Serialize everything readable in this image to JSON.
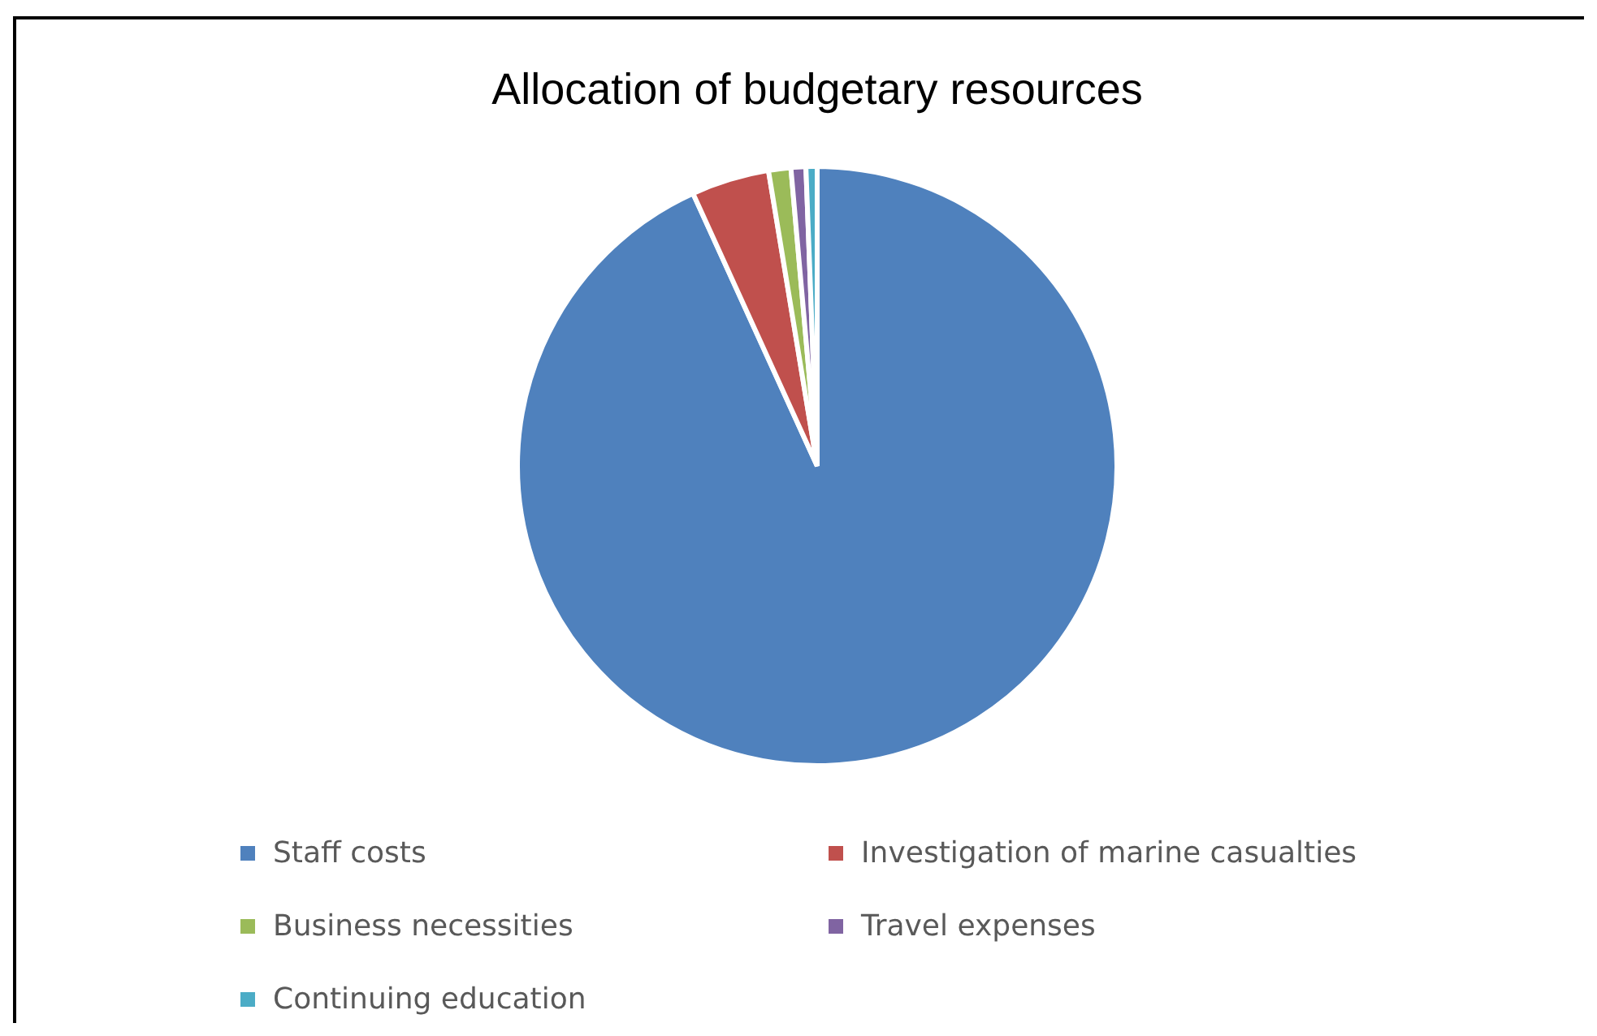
{
  "chart_data": {
    "type": "pie",
    "title": "Allocation of budgetary resources",
    "categories": [
      "Staff costs",
      "Investigation of marine casualties",
      "Business necessities",
      "Travel expenses",
      "Continuing education"
    ],
    "values": [
      93.2,
      4.2,
      1.2,
      0.8,
      0.6
    ],
    "colors": [
      "#4f81bd",
      "#c0504d",
      "#9bbb59",
      "#8064a2",
      "#4bacc6"
    ],
    "legend": "bottom"
  }
}
